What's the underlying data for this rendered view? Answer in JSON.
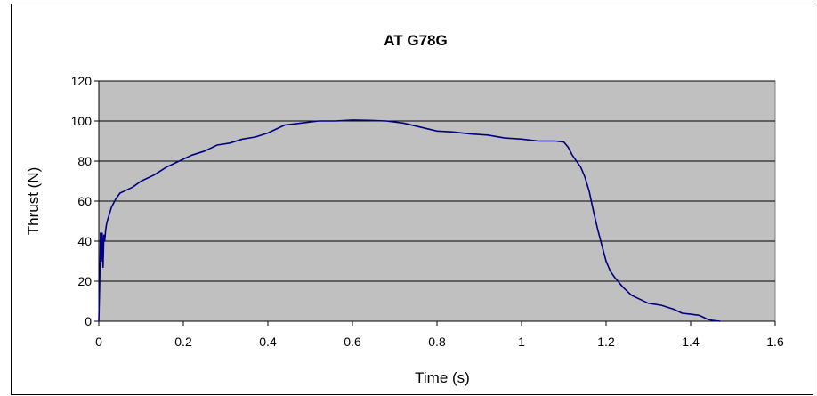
{
  "chart_data": {
    "type": "line",
    "title": "AT G78G",
    "xlabel": "Time (s)",
    "ylabel": "Thrust (N)",
    "xlim": [
      0,
      1.6
    ],
    "ylim": [
      0,
      120
    ],
    "xticks": [
      "0",
      "0.2",
      "0.4",
      "0.6",
      "0.8",
      "1",
      "1.2",
      "1.4",
      "1.6"
    ],
    "yticks": [
      "0",
      "20",
      "40",
      "60",
      "80",
      "100",
      "120"
    ],
    "grid": "horizontal",
    "plot_background": "#c0c0c0",
    "series": [
      {
        "color": "#000080",
        "x": [
          0,
          0.002,
          0.004,
          0.006,
          0.008,
          0.01,
          0.012,
          0.014,
          0.016,
          0.018,
          0.02,
          0.03,
          0.04,
          0.05,
          0.06,
          0.08,
          0.1,
          0.13,
          0.16,
          0.19,
          0.22,
          0.25,
          0.28,
          0.31,
          0.34,
          0.37,
          0.4,
          0.42,
          0.44,
          0.48,
          0.52,
          0.56,
          0.6,
          0.64,
          0.68,
          0.72,
          0.76,
          0.8,
          0.84,
          0.88,
          0.92,
          0.96,
          1.0,
          1.04,
          1.08,
          1.1,
          1.11,
          1.12,
          1.14,
          1.15,
          1.16,
          1.17,
          1.18,
          1.19,
          1.2,
          1.21,
          1.22,
          1.24,
          1.26,
          1.28,
          1.3,
          1.33,
          1.36,
          1.38,
          1.4,
          1.42,
          1.43,
          1.44,
          1.45,
          1.46,
          1.47
        ],
        "y": [
          0,
          19,
          44,
          30,
          44,
          27,
          43,
          40,
          45,
          48,
          50,
          57,
          61,
          64,
          65,
          67,
          70,
          73,
          77,
          80,
          83,
          85,
          88,
          89,
          91,
          92,
          94,
          96,
          98,
          99,
          100,
          100,
          100.5,
          100.3,
          100,
          99,
          97,
          95,
          94.5,
          93.5,
          93,
          91.5,
          91,
          90,
          90,
          89.5,
          87,
          83,
          77,
          72,
          65,
          55,
          46,
          38,
          30,
          25,
          22,
          17,
          13,
          11,
          9,
          8,
          6,
          4,
          3.5,
          3,
          2,
          1,
          0.5,
          0.2,
          0
        ]
      }
    ]
  }
}
